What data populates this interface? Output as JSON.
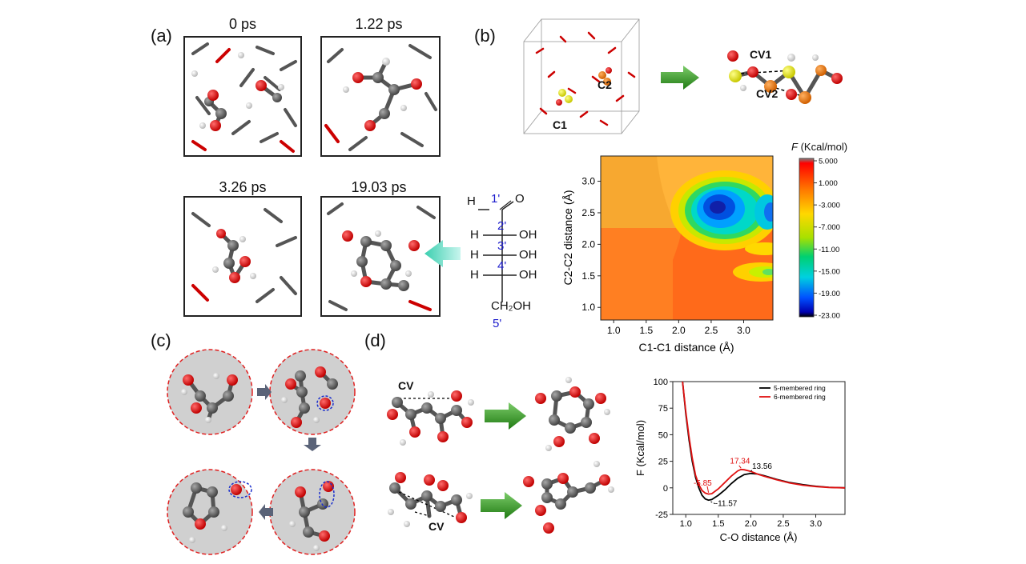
{
  "panels": {
    "a": {
      "label": "(a)",
      "times": [
        "0 ps",
        "1.22 ps",
        "3.26 ps",
        "19.03 ps"
      ],
      "structure": {
        "aldehyde_h": "H",
        "aldehyde_o": "O",
        "positions": [
          "1'",
          "2'",
          "3'",
          "4'",
          "5'"
        ],
        "h_labels": [
          "H",
          "H",
          "H"
        ],
        "oh_labels": [
          "OH",
          "OH",
          "OH"
        ],
        "ch2oh": "CH₂OH"
      }
    },
    "b": {
      "label": "(b)",
      "cell_labels": [
        "C2",
        "C1"
      ],
      "cv_labels": [
        "CV1",
        "CV2"
      ],
      "colorbar_title": "F (Kcal/mol)",
      "colorbar_ticks": [
        "5.000",
        "1.000",
        "-3.000",
        "-7.000",
        "-11.00",
        "-15.00",
        "-19.00",
        "-23.00"
      ]
    },
    "c": {
      "label": "(c)"
    },
    "d": {
      "label": "(d)",
      "cv_labels": [
        "CV",
        "CV"
      ]
    }
  },
  "chart_data": [
    {
      "type": "heatmap",
      "xlabel": "C1-C1 distance (Å)",
      "ylabel": "C2-C2 distance (Å)",
      "xlim": [
        0.8,
        3.45
      ],
      "ylim": [
        0.8,
        3.4
      ],
      "xticks": [
        "1.0",
        "1.5",
        "2.0",
        "2.5",
        "3.0"
      ],
      "yticks": [
        "1.0",
        "1.5",
        "2.0",
        "2.5",
        "3.0"
      ],
      "colorbar_range": [
        -23,
        5
      ],
      "minima": [
        {
          "x": 2.6,
          "y": 2.55,
          "F": -23
        },
        {
          "x": 3.4,
          "y": 2.5,
          "F": -19
        },
        {
          "x": 3.3,
          "y": 1.5,
          "F": -5
        }
      ]
    },
    {
      "type": "line",
      "xlabel": "C-O distance (Å)",
      "ylabel": "F (Kcal/mol)",
      "xlim": [
        0.8,
        3.45
      ],
      "ylim": [
        -25,
        100
      ],
      "xticks": [
        "1.0",
        "1.5",
        "2.0",
        "2.5",
        "3.0"
      ],
      "yticks": [
        "100",
        "75",
        "50",
        "25",
        "0",
        "-25"
      ],
      "legend_position": "top-right",
      "series": [
        {
          "name": "5-membered ring",
          "color": "#000000",
          "x": [
            0.95,
            1.0,
            1.05,
            1.1,
            1.15,
            1.2,
            1.25,
            1.3,
            1.35,
            1.4,
            1.5,
            1.6,
            1.7,
            1.8,
            1.9,
            2.0,
            2.1,
            2.2,
            2.4,
            2.6,
            2.8,
            3.0,
            3.2,
            3.45
          ],
          "y": [
            100,
            70,
            45,
            25,
            10,
            0,
            -7,
            -10.5,
            -11.57,
            -11,
            -7,
            -2,
            4,
            9,
            12.5,
            13.56,
            13,
            11.5,
            8,
            5,
            3,
            1.5,
            0.5,
            0
          ]
        },
        {
          "name": "6-membered ring",
          "color": "#e01010",
          "x": [
            0.95,
            1.0,
            1.05,
            1.1,
            1.15,
            1.2,
            1.25,
            1.3,
            1.35,
            1.4,
            1.5,
            1.6,
            1.7,
            1.8,
            1.85,
            1.9,
            2.0,
            2.1,
            2.2,
            2.4,
            2.6,
            2.8,
            3.0,
            3.2,
            3.45
          ],
          "y": [
            100,
            72,
            48,
            28,
            12,
            3,
            -2.5,
            -5,
            -5.85,
            -5.5,
            -1,
            5,
            11,
            16,
            17.34,
            17,
            15.5,
            13,
            11,
            7.5,
            4.5,
            2.5,
            1.2,
            0.4,
            0
          ]
        }
      ],
      "annotations": [
        {
          "text": "17.34",
          "color": "#e01010"
        },
        {
          "text": "13.56",
          "color": "#000000"
        },
        {
          "text": "-5.85",
          "color": "#e01010"
        },
        {
          "text": "-11.57",
          "color": "#000000"
        }
      ]
    }
  ]
}
